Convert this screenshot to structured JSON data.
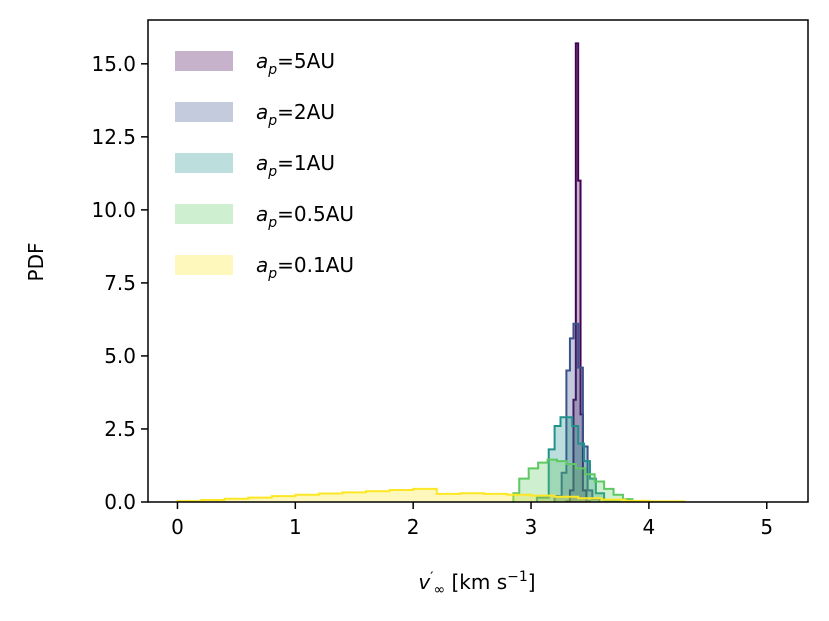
{
  "chart_data": {
    "type": "histogram",
    "xlabel": "v′∞ [km s⁻¹]",
    "ylabel": "PDF",
    "xlim": [
      -0.25,
      5.35
    ],
    "ylim": [
      0,
      16.5
    ],
    "x_ticks": [
      0,
      1,
      2,
      3,
      4,
      5
    ],
    "y_ticks": [
      0.0,
      2.5,
      5.0,
      7.5,
      10.0,
      12.5,
      15.0
    ],
    "x_tick_labels": [
      "0",
      "1",
      "2",
      "3",
      "4",
      "5"
    ],
    "y_tick_labels": [
      "0.0",
      "2.5",
      "5.0",
      "7.5",
      "10.0",
      "12.5",
      "15.0"
    ],
    "grid": false,
    "legend_position": "top-left",
    "series": [
      {
        "name": "a_p=5AU",
        "legend_base": "a",
        "legend_sub": "p",
        "legend_rest": "=5AU",
        "color": "#440154",
        "bins": [
          [
            3.3,
            3.33,
            0.02
          ],
          [
            3.33,
            3.36,
            0.4
          ],
          [
            3.36,
            3.38,
            3.5
          ],
          [
            3.38,
            3.4,
            15.7
          ],
          [
            3.4,
            3.42,
            11.0
          ],
          [
            3.42,
            3.44,
            3.0
          ],
          [
            3.44,
            3.47,
            0.4
          ],
          [
            3.47,
            3.5,
            0.02
          ]
        ]
      },
      {
        "name": "a_p=2AU",
        "legend_base": "a",
        "legend_sub": "p",
        "legend_rest": "=2AU",
        "color": "#3b528b",
        "bins": [
          [
            3.2,
            3.26,
            0.2
          ],
          [
            3.26,
            3.3,
            1.0
          ],
          [
            3.3,
            3.33,
            4.5
          ],
          [
            3.33,
            3.36,
            5.6
          ],
          [
            3.36,
            3.4,
            6.1
          ],
          [
            3.4,
            3.44,
            4.6
          ],
          [
            3.44,
            3.48,
            1.9
          ],
          [
            3.48,
            3.52,
            0.4
          ],
          [
            3.52,
            3.58,
            0.1
          ]
        ]
      },
      {
        "name": "a_p=1AU",
        "legend_base": "a",
        "legend_sub": "p",
        "legend_rest": "=1AU",
        "color": "#21918c",
        "bins": [
          [
            3.05,
            3.15,
            0.15
          ],
          [
            3.15,
            3.2,
            1.8
          ],
          [
            3.2,
            3.25,
            2.6
          ],
          [
            3.25,
            3.3,
            2.9
          ],
          [
            3.3,
            3.35,
            2.9
          ],
          [
            3.35,
            3.4,
            2.6
          ],
          [
            3.4,
            3.45,
            2.0
          ],
          [
            3.45,
            3.5,
            1.4
          ],
          [
            3.5,
            3.55,
            0.8
          ],
          [
            3.55,
            3.62,
            0.3
          ],
          [
            3.62,
            3.75,
            0.05
          ]
        ]
      },
      {
        "name": "a_p=0.5AU",
        "legend_base": "a",
        "legend_sub": "p",
        "legend_rest": "=0.5AU",
        "color": "#5ec962",
        "bins": [
          [
            2.85,
            2.9,
            0.3
          ],
          [
            2.9,
            2.98,
            0.8
          ],
          [
            2.98,
            3.06,
            1.15
          ],
          [
            3.06,
            3.14,
            1.35
          ],
          [
            3.14,
            3.22,
            1.45
          ],
          [
            3.22,
            3.3,
            1.4
          ],
          [
            3.3,
            3.38,
            1.3
          ],
          [
            3.38,
            3.46,
            1.15
          ],
          [
            3.46,
            3.54,
            0.95
          ],
          [
            3.54,
            3.62,
            0.7
          ],
          [
            3.62,
            3.7,
            0.45
          ],
          [
            3.7,
            3.78,
            0.25
          ],
          [
            3.78,
            3.86,
            0.1
          ],
          [
            3.86,
            4.0,
            0.03
          ]
        ]
      },
      {
        "name": "a_p=0.1AU",
        "legend_base": "a",
        "legend_sub": "p",
        "legend_rest": "=0.1AU",
        "color": "#fde725",
        "bins": [
          [
            0.0,
            0.2,
            0.03
          ],
          [
            0.2,
            0.4,
            0.07
          ],
          [
            0.4,
            0.6,
            0.11
          ],
          [
            0.6,
            0.8,
            0.15
          ],
          [
            0.8,
            1.0,
            0.2
          ],
          [
            1.0,
            1.2,
            0.25
          ],
          [
            1.2,
            1.4,
            0.29
          ],
          [
            1.4,
            1.6,
            0.33
          ],
          [
            1.6,
            1.8,
            0.37
          ],
          [
            1.8,
            2.0,
            0.41
          ],
          [
            2.0,
            2.2,
            0.45
          ],
          [
            2.2,
            2.4,
            0.28
          ],
          [
            2.4,
            2.6,
            0.3
          ],
          [
            2.6,
            2.8,
            0.28
          ],
          [
            2.8,
            3.0,
            0.25
          ],
          [
            3.0,
            3.2,
            0.22
          ],
          [
            3.2,
            3.4,
            0.18
          ],
          [
            3.4,
            3.6,
            0.13
          ],
          [
            3.6,
            3.8,
            0.08
          ],
          [
            3.8,
            4.0,
            0.04
          ],
          [
            4.0,
            4.3,
            0.02
          ]
        ]
      }
    ]
  }
}
